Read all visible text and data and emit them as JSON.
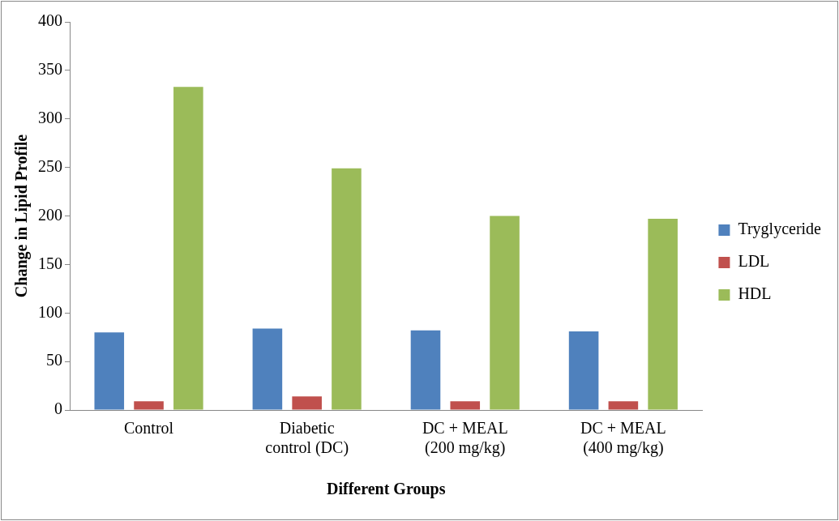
{
  "chart_data": {
    "type": "bar",
    "xlabel": "Different Groups",
    "ylabel": "Change in Lipid Profile",
    "categories": [
      "Control",
      "Diabetic\ncontrol (DC)",
      "DC + MEAL\n(200 mg/kg)",
      "DC + MEAL\n(400 mg/kg)"
    ],
    "series": [
      {
        "name": "Tryglyceride",
        "color": "#4f81bd",
        "values": [
          80,
          84,
          82,
          81
        ]
      },
      {
        "name": "LDL",
        "color": "#c0504d",
        "values": [
          9,
          14,
          9,
          9
        ]
      },
      {
        "name": "HDL",
        "color": "#9bbb59",
        "values": [
          333,
          249,
          200,
          197
        ]
      }
    ],
    "ylim": [
      0,
      400
    ],
    "yticks": [
      0,
      50,
      100,
      150,
      200,
      250,
      300,
      350,
      400
    ],
    "grid": false,
    "legend": "right"
  }
}
